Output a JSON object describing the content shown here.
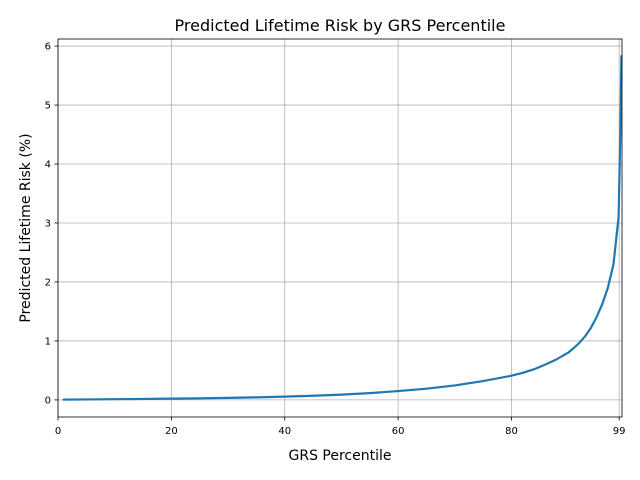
{
  "chart_data": {
    "type": "line",
    "title": "Predicted Lifetime Risk by GRS Percentile",
    "xlabel": "GRS Percentile",
    "ylabel": "Predicted Lifetime Risk (%)",
    "xlim": [
      0,
      99.5
    ],
    "ylim": [
      -0.29,
      6.12
    ],
    "xticks": [
      0,
      20,
      40,
      60,
      80,
      99
    ],
    "xtick_labels": [
      "0",
      "20",
      "40",
      "60",
      "80",
      "99"
    ],
    "yticks": [
      0,
      1,
      2,
      3,
      4,
      5,
      6
    ],
    "ytick_labels": [
      "0",
      "1",
      "2",
      "3",
      "4",
      "5",
      "6"
    ],
    "grid": true,
    "series": [
      {
        "color": "#1f77b4",
        "x": [
          1,
          5,
          10,
          15,
          20,
          25,
          30,
          35,
          40,
          45,
          50,
          55,
          60,
          65,
          70,
          75,
          80,
          82,
          84,
          86,
          88,
          90,
          91,
          92,
          93,
          94,
          95,
          96,
          97,
          97.5,
          98,
          98.5,
          98.9,
          99.2,
          99.4
        ],
        "values": [
          0.005,
          0.008,
          0.012,
          0.016,
          0.021,
          0.027,
          0.034,
          0.043,
          0.055,
          0.07,
          0.09,
          0.115,
          0.15,
          0.19,
          0.245,
          0.32,
          0.41,
          0.46,
          0.52,
          0.6,
          0.69,
          0.8,
          0.88,
          0.97,
          1.08,
          1.22,
          1.4,
          1.62,
          1.9,
          2.1,
          2.3,
          2.75,
          3.1,
          4.5,
          5.83
        ]
      }
    ]
  }
}
